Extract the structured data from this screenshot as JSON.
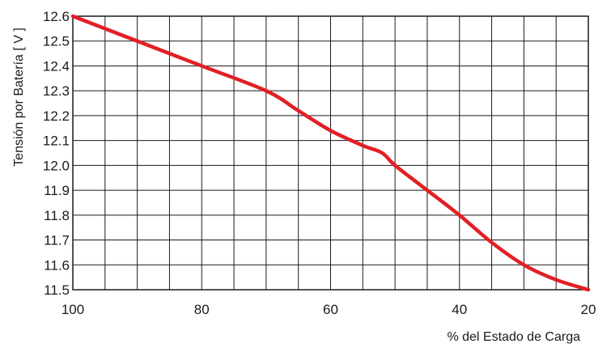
{
  "chart_data": {
    "type": "line",
    "title": "",
    "xlabel": "% del Estado de Carga",
    "ylabel": "Tensión por Batería  [ V ]",
    "xlim": [
      100,
      20
    ],
    "ylim": [
      11.5,
      12.6
    ],
    "x_ticks": [
      "100",
      "80",
      "60",
      "40",
      "20"
    ],
    "y_ticks": [
      "11.5",
      "11.6",
      "11.7",
      "11.8",
      "11.9",
      "12.0",
      "12.1",
      "12.2",
      "12.3",
      "12.4",
      "12.5",
      "12.6"
    ],
    "x_gridlines": [
      100,
      95,
      90,
      85,
      80,
      75,
      70,
      65,
      60,
      55,
      50,
      45,
      40,
      35,
      30,
      25,
      20
    ],
    "grid": true,
    "series": [
      {
        "color": "#e21f26",
        "x": [
          100,
          90,
          80,
          70,
          65,
          60,
          55,
          52,
          50,
          45,
          40,
          35,
          30,
          25,
          20
        ],
        "y": [
          12.6,
          12.5,
          12.4,
          12.3,
          12.22,
          12.14,
          12.08,
          12.05,
          12.0,
          11.9,
          11.8,
          11.69,
          11.6,
          11.54,
          11.5
        ]
      }
    ]
  }
}
